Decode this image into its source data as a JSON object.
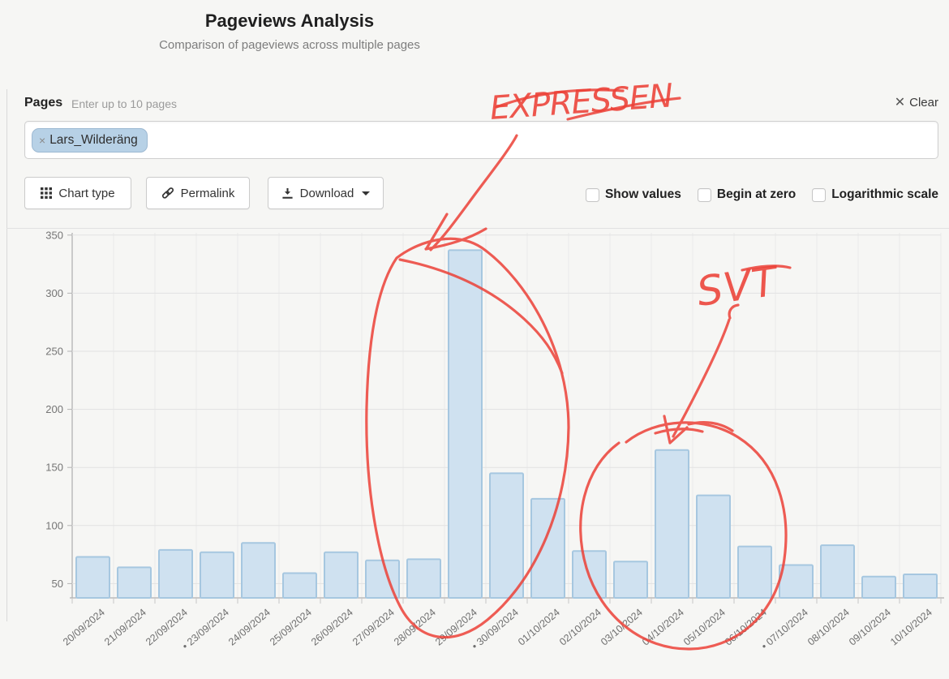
{
  "header": {
    "title": "Pageviews Analysis",
    "subtitle": "Comparison of pageviews across multiple pages"
  },
  "pages_section": {
    "label": "Pages",
    "hint": "Enter up to 10 pages",
    "clear_icon": "✕",
    "clear_label": "Clear",
    "tags": [
      {
        "remove_icon": "×",
        "text": "Lars_Wilderäng"
      }
    ]
  },
  "toolbar": {
    "chart_type_label": "Chart type",
    "permalink_label": "Permalink",
    "download_label": "Download",
    "checkboxes": [
      {
        "label": "Show values",
        "checked": false
      },
      {
        "label": "Begin at zero",
        "checked": false
      },
      {
        "label": "Logarithmic scale",
        "checked": false
      }
    ]
  },
  "chart_data": {
    "type": "bar",
    "title": "",
    "series_name": "Lars_Wilderäng",
    "categories": [
      "20/09/2024",
      "21/09/2024",
      "22/09/2024",
      "• 23/09/2024",
      "24/09/2024",
      "25/09/2024",
      "26/09/2024",
      "27/09/2024",
      "28/09/2024",
      "29/09/2024",
      "• 30/09/2024",
      "01/10/2024",
      "02/10/2024",
      "03/10/2024",
      "04/10/2024",
      "05/10/2024",
      "06/10/2024",
      "• 07/10/2024",
      "08/10/2024",
      "09/10/2024",
      "10/10/2024"
    ],
    "values": [
      73,
      64,
      79,
      77,
      85,
      59,
      77,
      70,
      71,
      337,
      145,
      123,
      78,
      69,
      165,
      126,
      82,
      66,
      83,
      56,
      58
    ],
    "xlabel": "",
    "ylabel": "",
    "yticks": [
      50,
      100,
      150,
      200,
      250,
      300,
      350
    ],
    "ylim": [
      44,
      358
    ],
    "grid": true,
    "legend_position": "none",
    "bar_fill": "#cfe1f0",
    "bar_border": "#a6c7e0"
  },
  "annotations": {
    "color": "#ec4137",
    "expressen_label": "EXPRESSEN",
    "svt_label": "SVT"
  }
}
